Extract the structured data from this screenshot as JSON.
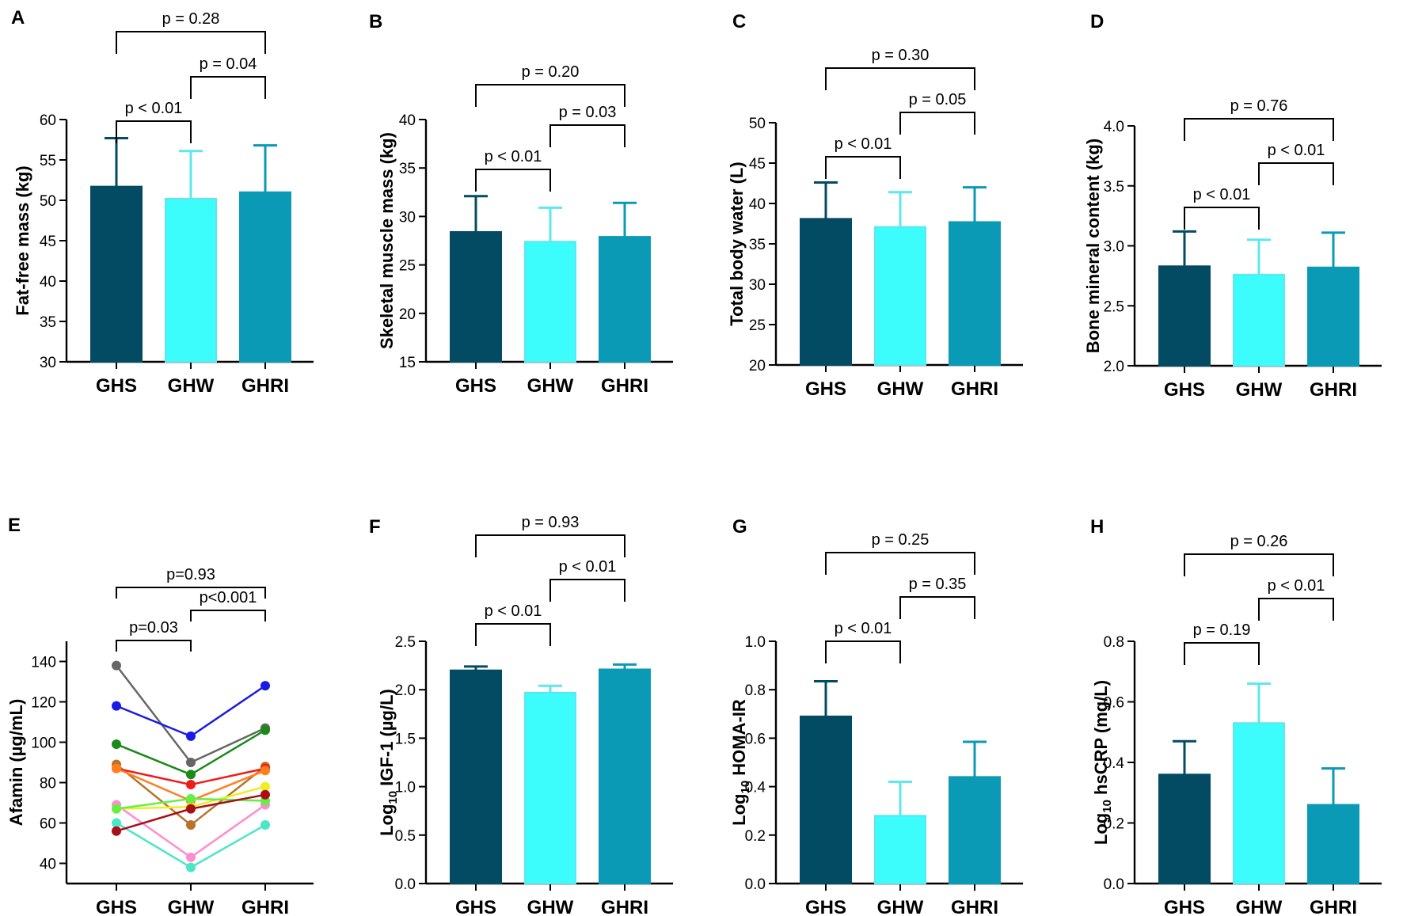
{
  "colors": {
    "GHS": "#034b62",
    "GHW": "#3cfcfc",
    "GHRI": "#0b9ab5",
    "GHW_err": "#5fe6ee"
  },
  "chart_data": [
    {
      "id": "A",
      "panel_label": "A",
      "type": "bar",
      "ylabel": "Fat-free mass (kg)",
      "categories": [
        "GHS",
        "GHW",
        "GHRI"
      ],
      "values": [
        51.7,
        50.2,
        51.0
      ],
      "errors": [
        6.0,
        5.9,
        5.8
      ],
      "ylim": [
        30,
        60
      ],
      "yticks": [
        30,
        35,
        40,
        45,
        50,
        55,
        60
      ],
      "tick_labels": [
        "30",
        "35",
        "40",
        "45",
        "50",
        "55",
        "60"
      ],
      "comparisons": [
        {
          "pair": [
            "GHS",
            "GHW"
          ],
          "label": "p < 0.01"
        },
        {
          "pair": [
            "GHW",
            "GHRI"
          ],
          "label": "p = 0.04"
        },
        {
          "pair": [
            "GHS",
            "GHRI"
          ],
          "label": "p = 0.28"
        }
      ]
    },
    {
      "id": "B",
      "panel_label": "B",
      "type": "bar",
      "ylabel": "Skeletal muscle mass (kg)",
      "categories": [
        "GHS",
        "GHW",
        "GHRI"
      ],
      "values": [
        28.4,
        27.4,
        27.9
      ],
      "errors": [
        3.7,
        3.5,
        3.5
      ],
      "ylim": [
        15,
        40
      ],
      "yticks": [
        15,
        20,
        25,
        30,
        35,
        40
      ],
      "tick_labels": [
        "15",
        "20",
        "25",
        "30",
        "35",
        "40"
      ],
      "comparisons": [
        {
          "pair": [
            "GHS",
            "GHW"
          ],
          "label": "p < 0.01"
        },
        {
          "pair": [
            "GHW",
            "GHRI"
          ],
          "label": "p = 0.03"
        },
        {
          "pair": [
            "GHS",
            "GHRI"
          ],
          "label": "p = 0.20"
        }
      ]
    },
    {
      "id": "C",
      "panel_label": "C",
      "type": "bar",
      "ylabel": "Total body water (L)",
      "categories": [
        "GHS",
        "GHW",
        "GHRI"
      ],
      "values": [
        38.1,
        37.1,
        37.7
      ],
      "errors": [
        4.5,
        4.3,
        4.3
      ],
      "ylim": [
        20,
        50
      ],
      "yticks": [
        20,
        25,
        30,
        35,
        40,
        45,
        50
      ],
      "tick_labels": [
        "20",
        "25",
        "30",
        "35",
        "40",
        "45",
        "50"
      ],
      "comparisons": [
        {
          "pair": [
            "GHS",
            "GHW"
          ],
          "label": "p < 0.01"
        },
        {
          "pair": [
            "GHW",
            "GHRI"
          ],
          "label": "p = 0.05"
        },
        {
          "pair": [
            "GHS",
            "GHRI"
          ],
          "label": "p = 0.30"
        }
      ]
    },
    {
      "id": "D",
      "panel_label": "D",
      "type": "bar",
      "ylabel": "Bone mineral content (kg)",
      "categories": [
        "GHS",
        "GHW",
        "GHRI"
      ],
      "values": [
        2.83,
        2.76,
        2.82
      ],
      "errors": [
        0.29,
        0.29,
        0.29
      ],
      "ylim": [
        2.0,
        4.0
      ],
      "yticks": [
        2.0,
        2.5,
        3.0,
        3.5,
        4.0
      ],
      "tick_labels": [
        "2.0",
        "2.5",
        "3.0",
        "3.5",
        "4.0"
      ],
      "comparisons": [
        {
          "pair": [
            "GHS",
            "GHW"
          ],
          "label": "p < 0.01"
        },
        {
          "pair": [
            "GHW",
            "GHRI"
          ],
          "label": "p < 0.01"
        },
        {
          "pair": [
            "GHS",
            "GHRI"
          ],
          "label": "p = 0.76"
        }
      ]
    },
    {
      "id": "E",
      "panel_label": "E",
      "type": "line",
      "ylabel": "Afamin (µg/mL)",
      "categories": [
        "GHS",
        "GHW",
        "GHRI"
      ],
      "ylim": [
        30,
        150
      ],
      "yticks": [
        40,
        60,
        80,
        100,
        120,
        140
      ],
      "tick_labels": [
        "40",
        "60",
        "80",
        "100",
        "120",
        "140"
      ],
      "series": [
        {
          "color": "#666666",
          "values": [
            138,
            90,
            107
          ]
        },
        {
          "color": "#1a1ae6",
          "values": [
            118,
            103,
            128
          ]
        },
        {
          "color": "#1a8a1a",
          "values": [
            99,
            84,
            106
          ]
        },
        {
          "color": "#b8732a",
          "values": [
            89,
            59,
            88
          ]
        },
        {
          "color": "#ee1c1c",
          "values": [
            87,
            79,
            87
          ]
        },
        {
          "color": "#ff7f1e",
          "values": [
            87,
            71,
            86
          ]
        },
        {
          "color": "#ff8ccf",
          "values": [
            69,
            43,
            69
          ]
        },
        {
          "color": "#eeee22",
          "values": [
            67,
            68,
            78
          ]
        },
        {
          "color": "#66ee44",
          "values": [
            67,
            72,
            71
          ]
        },
        {
          "color": "#4ae6c8",
          "values": [
            60,
            38,
            59
          ]
        },
        {
          "color": "#a80f16",
          "values": [
            56,
            67,
            74
          ]
        }
      ],
      "comparisons": [
        {
          "pair": [
            "GHS",
            "GHW"
          ],
          "label": "p=0.03"
        },
        {
          "pair": [
            "GHW",
            "GHRI"
          ],
          "label": "p<0.001"
        },
        {
          "pair": [
            "GHS",
            "GHRI"
          ],
          "label": "p=0.93"
        }
      ]
    },
    {
      "id": "F",
      "panel_label": "F",
      "type": "bar",
      "ylabel": "Log10 IGF-1 (µg/L)",
      "ylabel_parts": [
        "Log",
        "10",
        " IGF-1 (µg/L)"
      ],
      "categories": [
        "GHS",
        "GHW",
        "GHRI"
      ],
      "values": [
        2.2,
        1.97,
        2.21
      ],
      "errors": [
        0.04,
        0.07,
        0.05
      ],
      "ylim": [
        0.0,
        2.5
      ],
      "yticks": [
        0.0,
        0.5,
        1.0,
        1.5,
        2.0,
        2.5
      ],
      "tick_labels": [
        "0.0",
        "0.5",
        "1.0",
        "1.5",
        "2.0",
        "2.5"
      ],
      "comparisons": [
        {
          "pair": [
            "GHS",
            "GHW"
          ],
          "label": "p < 0.01"
        },
        {
          "pair": [
            "GHW",
            "GHRI"
          ],
          "label": "p < 0.01"
        },
        {
          "pair": [
            "GHS",
            "GHRI"
          ],
          "label": "p = 0.93"
        }
      ]
    },
    {
      "id": "G",
      "panel_label": "G",
      "type": "bar",
      "ylabel": "Log10 HOMA-IR",
      "ylabel_parts": [
        "Log",
        "10",
        " HOMA-IR"
      ],
      "categories": [
        "GHS",
        "GHW",
        "GHRI"
      ],
      "values": [
        0.69,
        0.28,
        0.44
      ],
      "errors": [
        0.145,
        0.14,
        0.145
      ],
      "ylim": [
        0.0,
        1.0
      ],
      "yticks": [
        0.0,
        0.2,
        0.4,
        0.6,
        0.8,
        1.0
      ],
      "tick_labels": [
        "0.0",
        "0.2",
        "0.4",
        "0.6",
        "0.8",
        "1.0"
      ],
      "comparisons": [
        {
          "pair": [
            "GHS",
            "GHW"
          ],
          "label": "p < 0.01"
        },
        {
          "pair": [
            "GHW",
            "GHRI"
          ],
          "label": "p = 0.35"
        },
        {
          "pair": [
            "GHS",
            "GHRI"
          ],
          "label": "p = 0.25"
        }
      ]
    },
    {
      "id": "H",
      "panel_label": "H",
      "type": "bar",
      "ylabel": "Log10 hsCRP (mg/L)",
      "ylabel_parts": [
        "Log",
        "10",
        " hsCRP (mg/L)"
      ],
      "categories": [
        "GHS",
        "GHW",
        "GHRI"
      ],
      "values": [
        0.36,
        0.53,
        0.26
      ],
      "errors": [
        0.11,
        0.13,
        0.12
      ],
      "ylim": [
        0.0,
        0.8
      ],
      "yticks": [
        0.0,
        0.2,
        0.4,
        0.6,
        0.8
      ],
      "tick_labels": [
        "0.0",
        "0.2",
        "0.4",
        "0.6",
        "0.8"
      ],
      "comparisons": [
        {
          "pair": [
            "GHS",
            "GHW"
          ],
          "label": "p = 0.19"
        },
        {
          "pair": [
            "GHW",
            "GHRI"
          ],
          "label": "p < 0.01"
        },
        {
          "pair": [
            "GHS",
            "GHRI"
          ],
          "label": "p = 0.26"
        }
      ]
    }
  ]
}
